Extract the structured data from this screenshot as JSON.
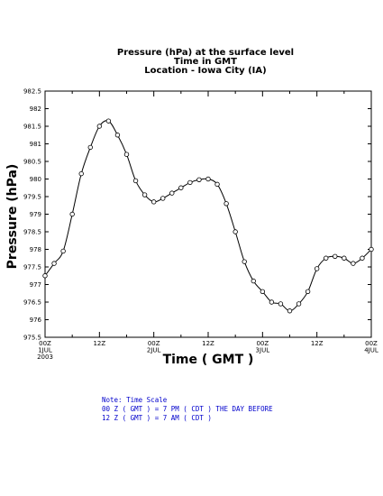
{
  "chart_data": {
    "type": "line",
    "title_lines": [
      "Pressure (hPa) at the surface level",
      "Time in GMT",
      "Location - Iowa City (IA)"
    ],
    "xlabel": "Time ( GMT )",
    "ylabel": "Pressure (hPa)",
    "ylim": [
      975.5,
      982.5
    ],
    "y_ticks": [
      "975.5",
      "976",
      "976.5",
      "977",
      "977.5",
      "978",
      "978.5",
      "979",
      "979.5",
      "980",
      "980.5",
      "981",
      "981.5",
      "982",
      "982.5"
    ],
    "x_range_hours": [
      0,
      72
    ],
    "x_ticks": [
      {
        "hour": 0,
        "line1": "00Z",
        "line2": "1JUL",
        "line3": "2003"
      },
      {
        "hour": 12,
        "line1": "12Z",
        "line2": "",
        "line3": ""
      },
      {
        "hour": 24,
        "line1": "00Z",
        "line2": "2JUL",
        "line3": ""
      },
      {
        "hour": 36,
        "line1": "12Z",
        "line2": "",
        "line3": ""
      },
      {
        "hour": 48,
        "line1": "00Z",
        "line2": "3JUL",
        "line3": ""
      },
      {
        "hour": 60,
        "line1": "12Z",
        "line2": "",
        "line3": ""
      },
      {
        "hour": 72,
        "line1": "00Z",
        "line2": "4JUL",
        "line3": ""
      }
    ],
    "x": [
      0,
      2,
      4,
      6,
      8,
      10,
      12,
      14,
      16,
      18,
      20,
      22,
      24,
      26,
      28,
      30,
      32,
      34,
      36,
      38,
      40,
      42,
      44,
      46,
      48,
      50,
      52,
      54,
      56,
      58,
      60,
      62,
      64,
      66,
      68,
      70,
      72
    ],
    "values": [
      977.25,
      977.6,
      977.95,
      979.0,
      980.15,
      980.9,
      981.5,
      981.65,
      981.25,
      980.7,
      979.95,
      979.55,
      979.35,
      979.45,
      979.6,
      979.75,
      979.9,
      979.98,
      980.0,
      979.85,
      979.3,
      978.5,
      977.65,
      977.1,
      976.8,
      976.5,
      976.45,
      976.25,
      976.45,
      976.8,
      977.45,
      977.75,
      977.8,
      977.75,
      977.6,
      977.75,
      978.0
    ],
    "line_color": "#000000"
  },
  "note": {
    "lines": [
      "Note: Time Scale",
      "00 Z ( GMT ) = 7 PM ( CDT ) THE DAY BEFORE",
      "12 Z ( GMT ) = 7 AM ( CDT )"
    ],
    "color": "#0000cc"
  }
}
